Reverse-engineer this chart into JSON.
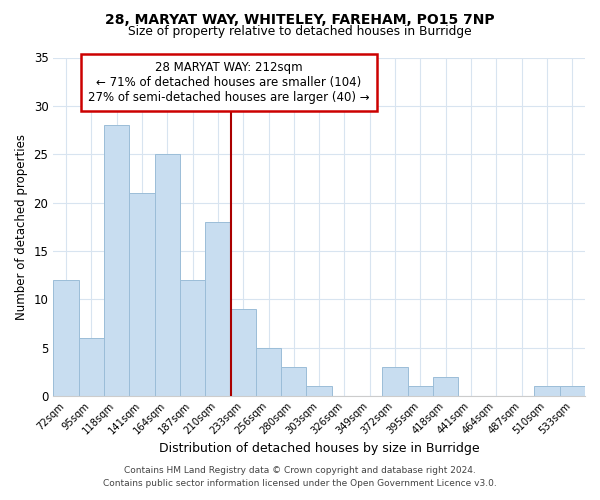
{
  "title_line1": "28, MARYAT WAY, WHITELEY, FAREHAM, PO15 7NP",
  "title_line2": "Size of property relative to detached houses in Burridge",
  "xlabel": "Distribution of detached houses by size in Burridge",
  "ylabel": "Number of detached properties",
  "bar_labels": [
    "72sqm",
    "95sqm",
    "118sqm",
    "141sqm",
    "164sqm",
    "187sqm",
    "210sqm",
    "233sqm",
    "256sqm",
    "280sqm",
    "303sqm",
    "326sqm",
    "349sqm",
    "372sqm",
    "395sqm",
    "418sqm",
    "441sqm",
    "464sqm",
    "487sqm",
    "510sqm",
    "533sqm"
  ],
  "bar_values": [
    12,
    6,
    28,
    21,
    25,
    12,
    18,
    9,
    5,
    3,
    1,
    0,
    0,
    3,
    1,
    2,
    0,
    0,
    0,
    1,
    1
  ],
  "bar_color": "#c8ddf0",
  "bar_edge_color": "#9bbdd8",
  "vline_color": "#aa0000",
  "annotation_line1": "28 MARYAT WAY: 212sqm",
  "annotation_line2": "← 71% of detached houses are smaller (104)",
  "annotation_line3": "27% of semi-detached houses are larger (40) →",
  "annotation_box_color": "#ffffff",
  "annotation_box_edge": "#cc0000",
  "ylim": [
    0,
    35
  ],
  "yticks": [
    0,
    5,
    10,
    15,
    20,
    25,
    30,
    35
  ],
  "footer_line1": "Contains HM Land Registry data © Crown copyright and database right 2024.",
  "footer_line2": "Contains public sector information licensed under the Open Government Licence v3.0.",
  "background_color": "#ffffff",
  "grid_color": "#d8e4f0"
}
